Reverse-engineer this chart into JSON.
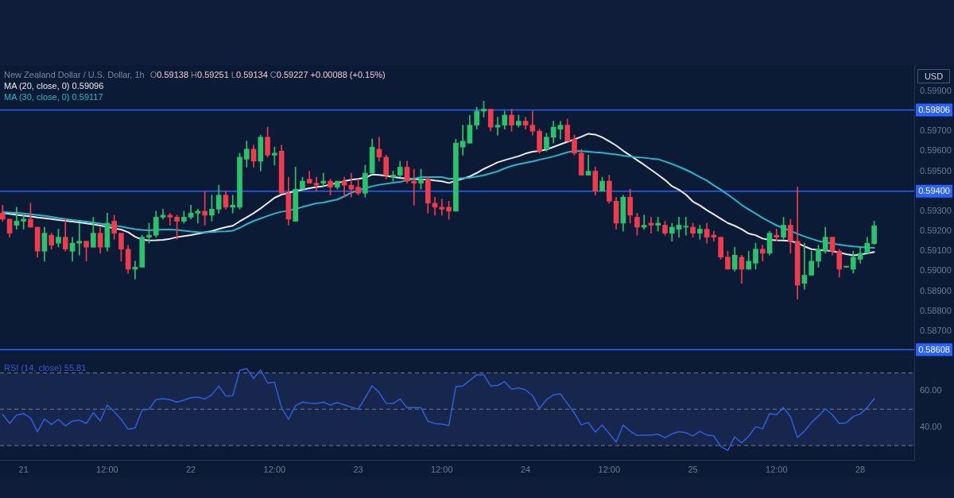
{
  "chart_data": [
    {
      "type": "candlestick",
      "title": "New Zealand Dollar / U.S. Dollar, 1h",
      "annotations": [
        "O0.59138 H0.59251 L0.59134 C0.59227 +0.00088 (+0.15%)",
        "0.59806",
        "0.59400",
        "0.58608"
      ],
      "ylabel": "USD",
      "legend": "top left",
      "tick_labels": "y",
      "categories": [
        null,
        null,
        null,
        null,
        null,
        null,
        null,
        null,
        null,
        null,
        null,
        null,
        null,
        null,
        null,
        null,
        null,
        null,
        null,
        null,
        null,
        null,
        null,
        null,
        null,
        null,
        null,
        null,
        null,
        null,
        null,
        null,
        null,
        null,
        null,
        null,
        null,
        null,
        null,
        null,
        null,
        null,
        null,
        null,
        null,
        null,
        null,
        null,
        null,
        null,
        null,
        null,
        null,
        null,
        null,
        null,
        null,
        null,
        null,
        null,
        null,
        null,
        null,
        null,
        null,
        null,
        null,
        null,
        null,
        null,
        null,
        null,
        null,
        null,
        null,
        null,
        null,
        null,
        null,
        null,
        null,
        null,
        null,
        null,
        null,
        null,
        null,
        null,
        null,
        null,
        null,
        null,
        null,
        null,
        null,
        null,
        null,
        null,
        null,
        null,
        null,
        null,
        null,
        null,
        null,
        null,
        null,
        null,
        null,
        null,
        null,
        null,
        null,
        null,
        null,
        null,
        null,
        null,
        null,
        null,
        null,
        null,
        null,
        null,
        null,
        null
      ],
      "ohlc": [
        [
          0.5929,
          0.5933,
          0.5925,
          0.5926
        ],
        [
          0.5926,
          0.5926,
          0.5917,
          0.5919
        ],
        [
          0.5923,
          0.5932,
          0.5921,
          0.5925
        ],
        [
          0.5925,
          0.5928,
          0.5921,
          0.5926
        ],
        [
          0.5926,
          0.5934,
          0.5922,
          0.5922
        ],
        [
          0.5922,
          0.5922,
          0.5907,
          0.591
        ],
        [
          0.591,
          0.5922,
          0.5905,
          0.5919
        ],
        [
          0.5918,
          0.5919,
          0.5911,
          0.5913
        ],
        [
          0.5914,
          0.5921,
          0.5912,
          0.5917
        ],
        [
          0.5917,
          0.5926,
          0.591,
          0.5911
        ],
        [
          0.591,
          0.5917,
          0.5905,
          0.5914
        ],
        [
          0.5914,
          0.5924,
          0.5908,
          0.5915
        ],
        [
          0.5915,
          0.5915,
          0.5905,
          0.5912
        ],
        [
          0.5912,
          0.5927,
          0.5912,
          0.5919
        ],
        [
          0.5919,
          0.5922,
          0.5909,
          0.5912
        ],
        [
          0.5912,
          0.5929,
          0.591,
          0.5924
        ],
        [
          0.5925,
          0.5928,
          0.5916,
          0.5919
        ],
        [
          0.5919,
          0.5919,
          0.5905,
          0.5911
        ],
        [
          0.5911,
          0.5913,
          0.5899,
          0.5901
        ],
        [
          0.5901,
          0.5905,
          0.5896,
          0.5902
        ],
        [
          0.5902,
          0.5918,
          0.5902,
          0.5917
        ],
        [
          0.5917,
          0.5924,
          0.5914,
          0.5918
        ],
        [
          0.5918,
          0.593,
          0.5917,
          0.5927
        ],
        [
          0.5927,
          0.5931,
          0.5926,
          0.5928
        ],
        [
          0.5928,
          0.5929,
          0.5923,
          0.5927
        ],
        [
          0.5927,
          0.5928,
          0.5916,
          0.5925
        ],
        [
          0.5925,
          0.593,
          0.5924,
          0.5927
        ],
        [
          0.5927,
          0.5933,
          0.5926,
          0.5929
        ],
        [
          0.5929,
          0.5931,
          0.5924,
          0.593
        ],
        [
          0.593,
          0.594,
          0.5923,
          0.5928
        ],
        [
          0.5928,
          0.5938,
          0.5925,
          0.5931
        ],
        [
          0.5931,
          0.5943,
          0.5929,
          0.5938
        ],
        [
          0.5938,
          0.594,
          0.5931,
          0.5932
        ],
        [
          0.5932,
          0.5938,
          0.5929,
          0.5933
        ],
        [
          0.5932,
          0.5959,
          0.5931,
          0.5957
        ],
        [
          0.5956,
          0.5965,
          0.5952,
          0.5961
        ],
        [
          0.5961,
          0.5963,
          0.5952,
          0.5955
        ],
        [
          0.5955,
          0.5968,
          0.595,
          0.5967
        ],
        [
          0.5967,
          0.5972,
          0.5957,
          0.5958
        ],
        [
          0.5958,
          0.5962,
          0.5953,
          0.5959
        ],
        [
          0.596,
          0.5963,
          0.5939,
          0.5939
        ],
        [
          0.5939,
          0.5947,
          0.5923,
          0.5926
        ],
        [
          0.5925,
          0.5952,
          0.5925,
          0.5941
        ],
        [
          0.5941,
          0.5947,
          0.5941,
          0.5945
        ],
        [
          0.5946,
          0.595,
          0.5944,
          0.5944
        ],
        [
          0.5944,
          0.5947,
          0.594,
          0.5943
        ],
        [
          0.5944,
          0.5949,
          0.5942,
          0.5945
        ],
        [
          0.5945,
          0.5946,
          0.5938,
          0.5942
        ],
        [
          0.5942,
          0.5945,
          0.5941,
          0.5945
        ],
        [
          0.5945,
          0.5947,
          0.5937,
          0.5943
        ],
        [
          0.5943,
          0.5949,
          0.5937,
          0.5941
        ],
        [
          0.5942,
          0.5946,
          0.5938,
          0.5939
        ],
        [
          0.5939,
          0.5953,
          0.5937,
          0.5949
        ],
        [
          0.5949,
          0.5966,
          0.5949,
          0.5962
        ],
        [
          0.5961,
          0.5967,
          0.5955,
          0.5957
        ],
        [
          0.5957,
          0.5958,
          0.5946,
          0.5948
        ],
        [
          0.5947,
          0.595,
          0.5945,
          0.5948
        ],
        [
          0.5948,
          0.5955,
          0.5947,
          0.5952
        ],
        [
          0.5952,
          0.5955,
          0.5944,
          0.5945
        ],
        [
          0.5945,
          0.5951,
          0.5933,
          0.5944
        ],
        [
          0.5944,
          0.5951,
          0.5941,
          0.5946
        ],
        [
          0.5946,
          0.5947,
          0.5929,
          0.5934
        ],
        [
          0.5934,
          0.5937,
          0.5928,
          0.5932
        ],
        [
          0.5932,
          0.5936,
          0.5928,
          0.5931
        ],
        [
          0.5932,
          0.5935,
          0.5926,
          0.593
        ],
        [
          0.593,
          0.5966,
          0.593,
          0.5964
        ],
        [
          0.5962,
          0.5973,
          0.5958,
          0.5965
        ],
        [
          0.5964,
          0.5978,
          0.5964,
          0.5973
        ],
        [
          0.5973,
          0.5982,
          0.5971,
          0.598
        ],
        [
          0.598,
          0.5985,
          0.5977,
          0.5981
        ],
        [
          0.5981,
          0.5981,
          0.597,
          0.5972
        ],
        [
          0.5972,
          0.5977,
          0.5968,
          0.5973
        ],
        [
          0.5973,
          0.598,
          0.5971,
          0.5978
        ],
        [
          0.5978,
          0.5981,
          0.597,
          0.5973
        ],
        [
          0.5973,
          0.5978,
          0.5972,
          0.5975
        ],
        [
          0.5975,
          0.5977,
          0.5971,
          0.5973
        ],
        [
          0.5973,
          0.598,
          0.5968,
          0.597
        ],
        [
          0.597,
          0.5971,
          0.5959,
          0.596
        ],
        [
          0.5961,
          0.5969,
          0.596,
          0.5967
        ],
        [
          0.5967,
          0.5975,
          0.5964,
          0.5972
        ],
        [
          0.5971,
          0.5975,
          0.5966,
          0.5973
        ],
        [
          0.5973,
          0.5976,
          0.5965,
          0.5965
        ],
        [
          0.5966,
          0.5968,
          0.5958,
          0.5959
        ],
        [
          0.5959,
          0.5961,
          0.5948,
          0.5948
        ],
        [
          0.5948,
          0.5958,
          0.5948,
          0.595
        ],
        [
          0.595,
          0.5952,
          0.5938,
          0.594
        ],
        [
          0.594,
          0.5947,
          0.594,
          0.5945
        ],
        [
          0.5945,
          0.5948,
          0.5934,
          0.5935
        ],
        [
          0.5935,
          0.5937,
          0.5921,
          0.5924
        ],
        [
          0.5924,
          0.5938,
          0.592,
          0.5937
        ],
        [
          0.5937,
          0.5941,
          0.5924,
          0.5928
        ],
        [
          0.5927,
          0.5929,
          0.5918,
          0.5922
        ],
        [
          0.5922,
          0.5928,
          0.5921,
          0.5923
        ],
        [
          0.5924,
          0.5927,
          0.5919,
          0.5923
        ],
        [
          0.5923,
          0.5927,
          0.592,
          0.5924
        ],
        [
          0.5923,
          0.5925,
          0.5918,
          0.5919
        ],
        [
          0.5919,
          0.5924,
          0.5915,
          0.5922
        ],
        [
          0.5921,
          0.5927,
          0.5917,
          0.5923
        ],
        [
          0.5922,
          0.5927,
          0.5918,
          0.59225
        ],
        [
          0.5922,
          0.5924,
          0.5917,
          0.5919
        ],
        [
          0.5919,
          0.5923,
          0.5916,
          0.5921
        ],
        [
          0.5921,
          0.5924,
          0.5914,
          0.5917
        ],
        [
          0.5918,
          0.592,
          0.5915,
          0.5917
        ],
        [
          0.5917,
          0.5917,
          0.5906,
          0.5907
        ],
        [
          0.5907,
          0.591,
          0.5901,
          0.5901
        ],
        [
          0.5901,
          0.5912,
          0.59,
          0.5908
        ],
        [
          0.5907,
          0.5908,
          0.5894,
          0.5901
        ],
        [
          0.5901,
          0.591,
          0.5901,
          0.5905
        ],
        [
          0.5904,
          0.5914,
          0.5901,
          0.5911
        ],
        [
          0.5911,
          0.5913,
          0.5905,
          0.5909
        ],
        [
          0.5909,
          0.592,
          0.5908,
          0.5919
        ],
        [
          0.5918,
          0.5921,
          0.5915,
          0.5917
        ],
        [
          0.5917,
          0.5927,
          0.5916,
          0.5923
        ],
        [
          0.5923,
          0.5926,
          0.5909,
          0.5915
        ],
        [
          0.5915,
          0.5942,
          0.5886,
          0.5893
        ],
        [
          0.5894,
          0.5914,
          0.5891,
          0.5898
        ],
        [
          0.5898,
          0.591,
          0.5898,
          0.5905
        ],
        [
          0.5905,
          0.5913,
          0.5902,
          0.5911
        ],
        [
          0.591,
          0.5922,
          0.5909,
          0.5917
        ],
        [
          0.5917,
          0.5917,
          0.5908,
          0.591
        ],
        [
          0.591,
          0.5911,
          0.5897,
          0.5901
        ],
        [
          0.5902,
          0.59025,
          0.5902,
          0.59025
        ],
        [
          0.5901,
          0.591,
          0.5899,
          0.5907
        ],
        [
          0.5906,
          0.5912,
          0.5904,
          0.5909
        ],
        [
          0.5909,
          0.5917,
          0.5909,
          0.5914
        ],
        [
          0.59138,
          0.59251,
          0.59134,
          0.59227
        ]
      ],
      "colors": [
        "#ef3b4e",
        "#ef3b4e",
        "#2bc26e",
        "#2bc26e",
        "#ef3b4e",
        "#ef3b4e",
        "#2bc26e",
        "#ef3b4e",
        "#2bc26e",
        "#ef3b4e",
        "#2bc26e",
        "#2bc26e",
        "#ef3b4e",
        "#2bc26e",
        "#ef3b4e",
        "#2bc26e",
        "#ef3b4e",
        "#ef3b4e",
        "#ef3b4e",
        "#2bc26e",
        "#2bc26e",
        "#2bc26e",
        "#2bc26e",
        "#2bc26e",
        "#ef3b4e",
        "#ef3b4e",
        "#2bc26e",
        "#2bc26e",
        "#2bc26e",
        "#ef3b4e",
        "#2bc26e",
        "#2bc26e",
        "#ef3b4e",
        "#2bc26e",
        "#2bc26e",
        "#2bc26e",
        "#ef3b4e",
        "#2bc26e",
        "#ef3b4e",
        "#2bc26e",
        "#ef3b4e",
        "#ef3b4e",
        "#2bc26e",
        "#2bc26e",
        "#ef3b4e",
        "#ef3b4e",
        "#2bc26e",
        "#ef3b4e",
        "#2bc26e",
        "#ef3b4e",
        "#ef3b4e",
        "#ef3b4e",
        "#2bc26e",
        "#2bc26e",
        "#ef3b4e",
        "#ef3b4e",
        "#2bc26e",
        "#2bc26e",
        "#ef3b4e",
        "#ef3b4e",
        "#2bc26e",
        "#ef3b4e",
        "#ef3b4e",
        "#ef3b4e",
        "#ef3b4e",
        "#2bc26e",
        "#2bc26e",
        "#2bc26e",
        "#2bc26e",
        "#2bc26e",
        "#ef3b4e",
        "#2bc26e",
        "#2bc26e",
        "#ef3b4e",
        "#2bc26e",
        "#ef3b4e",
        "#ef3b4e",
        "#ef3b4e",
        "#2bc26e",
        "#2bc26e",
        "#2bc26e",
        "#ef3b4e",
        "#ef3b4e",
        "#ef3b4e",
        "#2bc26e",
        "#ef3b4e",
        "#2bc26e",
        "#ef3b4e",
        "#ef3b4e",
        "#2bc26e",
        "#ef3b4e",
        "#ef3b4e",
        "#2bc26e",
        "#ef3b4e",
        "#2bc26e",
        "#ef3b4e",
        "#2bc26e",
        "#2bc26e",
        "#2bc26e",
        "#ef3b4e",
        "#2bc26e",
        "#ef3b4e",
        "#ef3b4e",
        "#ef3b4e",
        "#ef3b4e",
        "#2bc26e",
        "#ef3b4e",
        "#2bc26e",
        "#2bc26e",
        "#ef3b4e",
        "#2bc26e",
        "#ef3b4e",
        "#2bc26e",
        "#ef3b4e",
        "#ef3b4e",
        "#2bc26e",
        "#2bc26e",
        "#2bc26e",
        "#2bc26e",
        "#ef3b4e",
        "#ef3b4e",
        "#2bc26e",
        "#2bc26e",
        "#2bc26e",
        "#2bc26e",
        "#2bc26e"
      ],
      "series": [
        {
          "name": "MA (20, close, 0) 0.59096",
          "type": "line",
          "color": "#e9e9ef",
          "values": [
            0.59292,
            0.59287,
            0.59282,
            0.59278,
            0.59274,
            0.59269,
            0.59265,
            0.59261,
            0.59256,
            0.59252,
            0.59248,
            0.59244,
            0.59239,
            0.59234,
            0.59228,
            0.59222,
            0.59214,
            0.59208,
            0.59195,
            0.59172,
            0.59158,
            0.59154,
            0.59155,
            0.59157,
            0.59162,
            0.5917,
            0.59175,
            0.5918,
            0.59187,
            0.59194,
            0.592,
            0.59211,
            0.5922,
            0.59227,
            0.59249,
            0.59269,
            0.5929,
            0.59314,
            0.5934,
            0.59367,
            0.59383,
            0.59392,
            0.594,
            0.59408,
            0.59415,
            0.59421,
            0.59425,
            0.59433,
            0.59441,
            0.5945,
            0.59457,
            0.59461,
            0.59467,
            0.59483,
            0.59481,
            0.59477,
            0.59471,
            0.59466,
            0.59462,
            0.5946,
            0.59458,
            0.59458,
            0.59453,
            0.59449,
            0.59441,
            0.59452,
            0.59462,
            0.59474,
            0.59491,
            0.59511,
            0.59527,
            0.59544,
            0.59555,
            0.59565,
            0.59575,
            0.59588,
            0.59597,
            0.59601,
            0.59608,
            0.59621,
            0.59634,
            0.59647,
            0.59659,
            0.59672,
            0.59687,
            0.59683,
            0.59669,
            0.59649,
            0.59628,
            0.59602,
            0.59579,
            0.59555,
            0.59532,
            0.59507,
            0.59482,
            0.59456,
            0.59425,
            0.59407,
            0.59383,
            0.59348,
            0.59329,
            0.59305,
            0.59284,
            0.59262,
            0.59241,
            0.59227,
            0.5921,
            0.59188,
            0.5918,
            0.59163,
            0.59157,
            0.59155,
            0.59154,
            0.59151,
            0.59141,
            0.59124,
            0.5911,
            0.59106,
            0.59104,
            0.591,
            0.59093,
            0.59085,
            0.59079,
            0.59083,
            0.59089,
            0.59096
          ]
        },
        {
          "name": "MA (30, close, 0) 0.59117",
          "type": "line",
          "color": "#25b6cc",
          "values": [
            0.59296,
            0.59294,
            0.59292,
            0.59289,
            0.59285,
            0.59281,
            0.59277,
            0.59272,
            0.59266,
            0.59261,
            0.59256,
            0.59252,
            0.59248,
            0.59243,
            0.59238,
            0.59233,
            0.59228,
            0.59223,
            0.59216,
            0.5921,
            0.59206,
            0.59204,
            0.59207,
            0.59208,
            0.59208,
            0.59206,
            0.59202,
            0.59198,
            0.59195,
            0.59194,
            0.59195,
            0.59198,
            0.59199,
            0.59202,
            0.59217,
            0.59235,
            0.59251,
            0.59264,
            0.59276,
            0.59288,
            0.59297,
            0.59303,
            0.59311,
            0.59321,
            0.5933,
            0.59339,
            0.59343,
            0.59351,
            0.59358,
            0.59374,
            0.59392,
            0.59405,
            0.59415,
            0.59424,
            0.59432,
            0.59437,
            0.59442,
            0.59446,
            0.59454,
            0.59462,
            0.5947,
            0.5947,
            0.5947,
            0.5947,
            0.59462,
            0.59462,
            0.59465,
            0.59467,
            0.59473,
            0.59479,
            0.59489,
            0.59499,
            0.59514,
            0.59526,
            0.59535,
            0.59542,
            0.59549,
            0.59557,
            0.59565,
            0.59573,
            0.59584,
            0.59594,
            0.59601,
            0.596,
            0.59597,
            0.59594,
            0.59592,
            0.59587,
            0.59583,
            0.59577,
            0.59573,
            0.59569,
            0.59567,
            0.59563,
            0.5956,
            0.59548,
            0.59536,
            0.59522,
            0.59507,
            0.5949,
            0.59471,
            0.59453,
            0.59429,
            0.59407,
            0.59383,
            0.59358,
            0.59331,
            0.59309,
            0.59288,
            0.59266,
            0.59247,
            0.59229,
            0.59215,
            0.59202,
            0.59187,
            0.59174,
            0.59162,
            0.59151,
            0.59145,
            0.59138,
            0.59133,
            0.59128,
            0.59124,
            0.59121,
            0.59118,
            0.59117
          ]
        }
      ],
      "ylim": [
        0.58573,
        0.6003
      ],
      "yticks": [
        {
          "value": 0.599,
          "label": "0.59900"
        },
        {
          "value": 0.597,
          "label": "0.59700"
        },
        {
          "value": 0.596,
          "label": "0.59600"
        },
        {
          "value": 0.595,
          "label": "0.59500"
        },
        {
          "value": 0.593,
          "label": "0.59300"
        },
        {
          "value": 0.592,
          "label": "0.59200"
        },
        {
          "value": 0.591,
          "label": "0.59100"
        },
        {
          "value": 0.59,
          "label": "0.59000"
        },
        {
          "value": 0.589,
          "label": "0.58900"
        },
        {
          "value": 0.588,
          "label": "0.58800"
        },
        {
          "value": 0.587,
          "label": "0.58700"
        }
      ],
      "ref_lines": [
        {
          "axis": "y",
          "value": 0.59806,
          "color": "#2962ff"
        },
        {
          "axis": "y",
          "value": 0.594,
          "color": "#2962ff"
        },
        {
          "axis": "y",
          "value": 0.58608,
          "color": "#2962ff"
        }
      ]
    },
    {
      "type": "line",
      "legend": "top left",
      "categories": [
        null,
        null,
        null,
        "21",
        null,
        null,
        null,
        null,
        null,
        null,
        null,
        null,
        null,
        null,
        null,
        "12:00",
        null,
        null,
        null,
        null,
        null,
        null,
        null,
        null,
        null,
        null,
        null,
        "22",
        null,
        null,
        null,
        null,
        null,
        null,
        null,
        null,
        null,
        null,
        null,
        "12:00",
        null,
        null,
        null,
        null,
        null,
        null,
        null,
        null,
        null,
        null,
        null,
        "23",
        null,
        null,
        null,
        null,
        null,
        null,
        null,
        null,
        null,
        null,
        null,
        "12:00",
        null,
        null,
        null,
        null,
        null,
        null,
        null,
        null,
        null,
        null,
        null,
        "24",
        null,
        null,
        null,
        null,
        null,
        null,
        null,
        null,
        null,
        null,
        null,
        "12:00",
        null,
        null,
        null,
        null,
        null,
        null,
        null,
        null,
        null,
        null,
        null,
        "25",
        null,
        null,
        null,
        null,
        null,
        null,
        null,
        null,
        null,
        null,
        null,
        "12:00",
        null,
        null,
        null,
        null,
        null,
        null,
        null,
        null,
        null,
        null,
        null,
        "28",
        null,
        null
      ],
      "series": [
        {
          "name": "RSI (14, close) 55.81",
          "color": "#2f5fd8",
          "values": [
            47.1,
            42.1,
            46.8,
            47.6,
            45.2,
            37.6,
            44.7,
            41.6,
            44.4,
            40.8,
            43.4,
            44.0,
            42.1,
            48.1,
            43.5,
            52.3,
            48.7,
            44.4,
            38.9,
            39.7,
            49.5,
            50.0,
            55.3,
            55.8,
            55.2,
            53.9,
            55.0,
            56.3,
            56.6,
            55.6,
            57.9,
            62.7,
            57.3,
            57.4,
            71.3,
            72.4,
            66.9,
            71.6,
            64.4,
            64.8,
            50.8,
            44.5,
            51.9,
            53.9,
            53.4,
            53.1,
            53.9,
            52.3,
            53.7,
            52.4,
            51.1,
            50.0,
            56.3,
            62.9,
            59.2,
            53.2,
            53.1,
            55.6,
            50.8,
            50.8,
            50.8,
            43.4,
            42.1,
            41.8,
            41.0,
            62.4,
            62.8,
            65.9,
            68.9,
            68.9,
            62.8,
            63.1,
            65.2,
            61.0,
            61.7,
            60.7,
            57.5,
            50.5,
            55.2,
            57.9,
            58.4,
            53.1,
            47.9,
            41.4,
            42.7,
            37.4,
            41.3,
            36.5,
            31.8,
            41.3,
            37.9,
            35.5,
            35.8,
            35.8,
            36.2,
            34.3,
            36.5,
            37.6,
            37.1,
            35.3,
            37.8,
            35.8,
            35.3,
            29.5,
            27.3,
            34.8,
            31.5,
            35.1,
            40.4,
            39.2,
            47.6,
            47.0,
            50.9,
            45.8,
            34.4,
            37.9,
            42.7,
            46.2,
            50.2,
            46.9,
            42.1,
            42.5,
            46.0,
            47.4,
            50.9,
            55.8
          ]
        }
      ],
      "ylim": [
        22.1,
        78.5
      ],
      "yticks": [
        {
          "value": 60,
          "label": "60.00"
        },
        {
          "value": 40,
          "label": "40.00"
        }
      ],
      "ref_lines": [
        {
          "axis": "y",
          "value": 70,
          "color": "#787b86",
          "line_style": "dashed"
        },
        {
          "axis": "y",
          "value": 50,
          "color": "#787b86",
          "line_style": "dashed"
        },
        {
          "axis": "y",
          "value": 30,
          "color": "#787b86",
          "line_style": "dashed"
        }
      ],
      "bands": [
        {
          "axis": "y",
          "from": 30,
          "to": 70,
          "color": "#16264d"
        }
      ]
    }
  ]
}
